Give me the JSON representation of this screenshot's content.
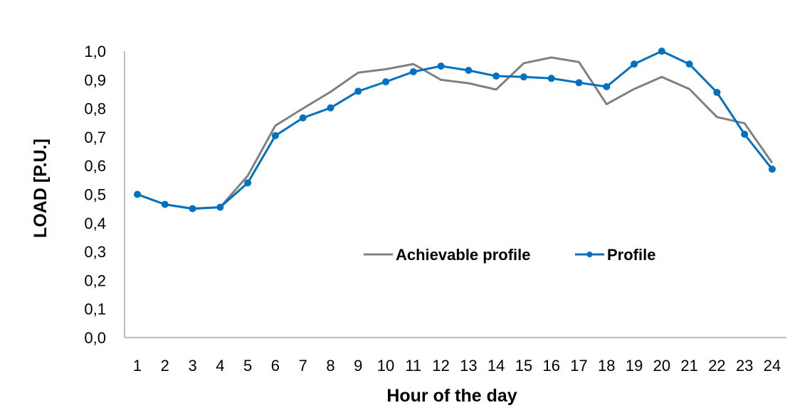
{
  "chart_data": {
    "type": "line",
    "title": "",
    "xlabel": "Hour of the day",
    "ylabel": "LOAD [P.U.]",
    "categories": [
      "1",
      "2",
      "3",
      "4",
      "5",
      "6",
      "7",
      "8",
      "9",
      "10",
      "11",
      "12",
      "13",
      "14",
      "15",
      "16",
      "17",
      "18",
      "19",
      "20",
      "21",
      "22",
      "23",
      "24"
    ],
    "y_ticks": [
      "0,0",
      "0,1",
      "0,2",
      "0,3",
      "0,4",
      "0,5",
      "0,6",
      "0,7",
      "0,8",
      "0,9",
      "1,0"
    ],
    "ylim": [
      0,
      1.0
    ],
    "grid": false,
    "legend_position": "inside-center",
    "series": [
      {
        "name": "Achievable profile",
        "color": "#808080",
        "markers": false,
        "values": [
          0.5,
          0.465,
          0.45,
          0.455,
          0.565,
          0.74,
          0.8,
          0.858,
          0.925,
          0.937,
          0.955,
          0.9,
          0.888,
          0.866,
          0.958,
          0.978,
          0.962,
          0.815,
          0.868,
          0.91,
          0.868,
          0.77,
          0.748,
          0.61
        ]
      },
      {
        "name": "Profile",
        "color": "#0070C0",
        "markers": true,
        "values": [
          0.5,
          0.465,
          0.45,
          0.455,
          0.54,
          0.705,
          0.767,
          0.802,
          0.86,
          0.893,
          0.928,
          0.948,
          0.933,
          0.913,
          0.91,
          0.905,
          0.89,
          0.876,
          0.955,
          1.0,
          0.955,
          0.856,
          0.71,
          0.588
        ]
      }
    ]
  }
}
